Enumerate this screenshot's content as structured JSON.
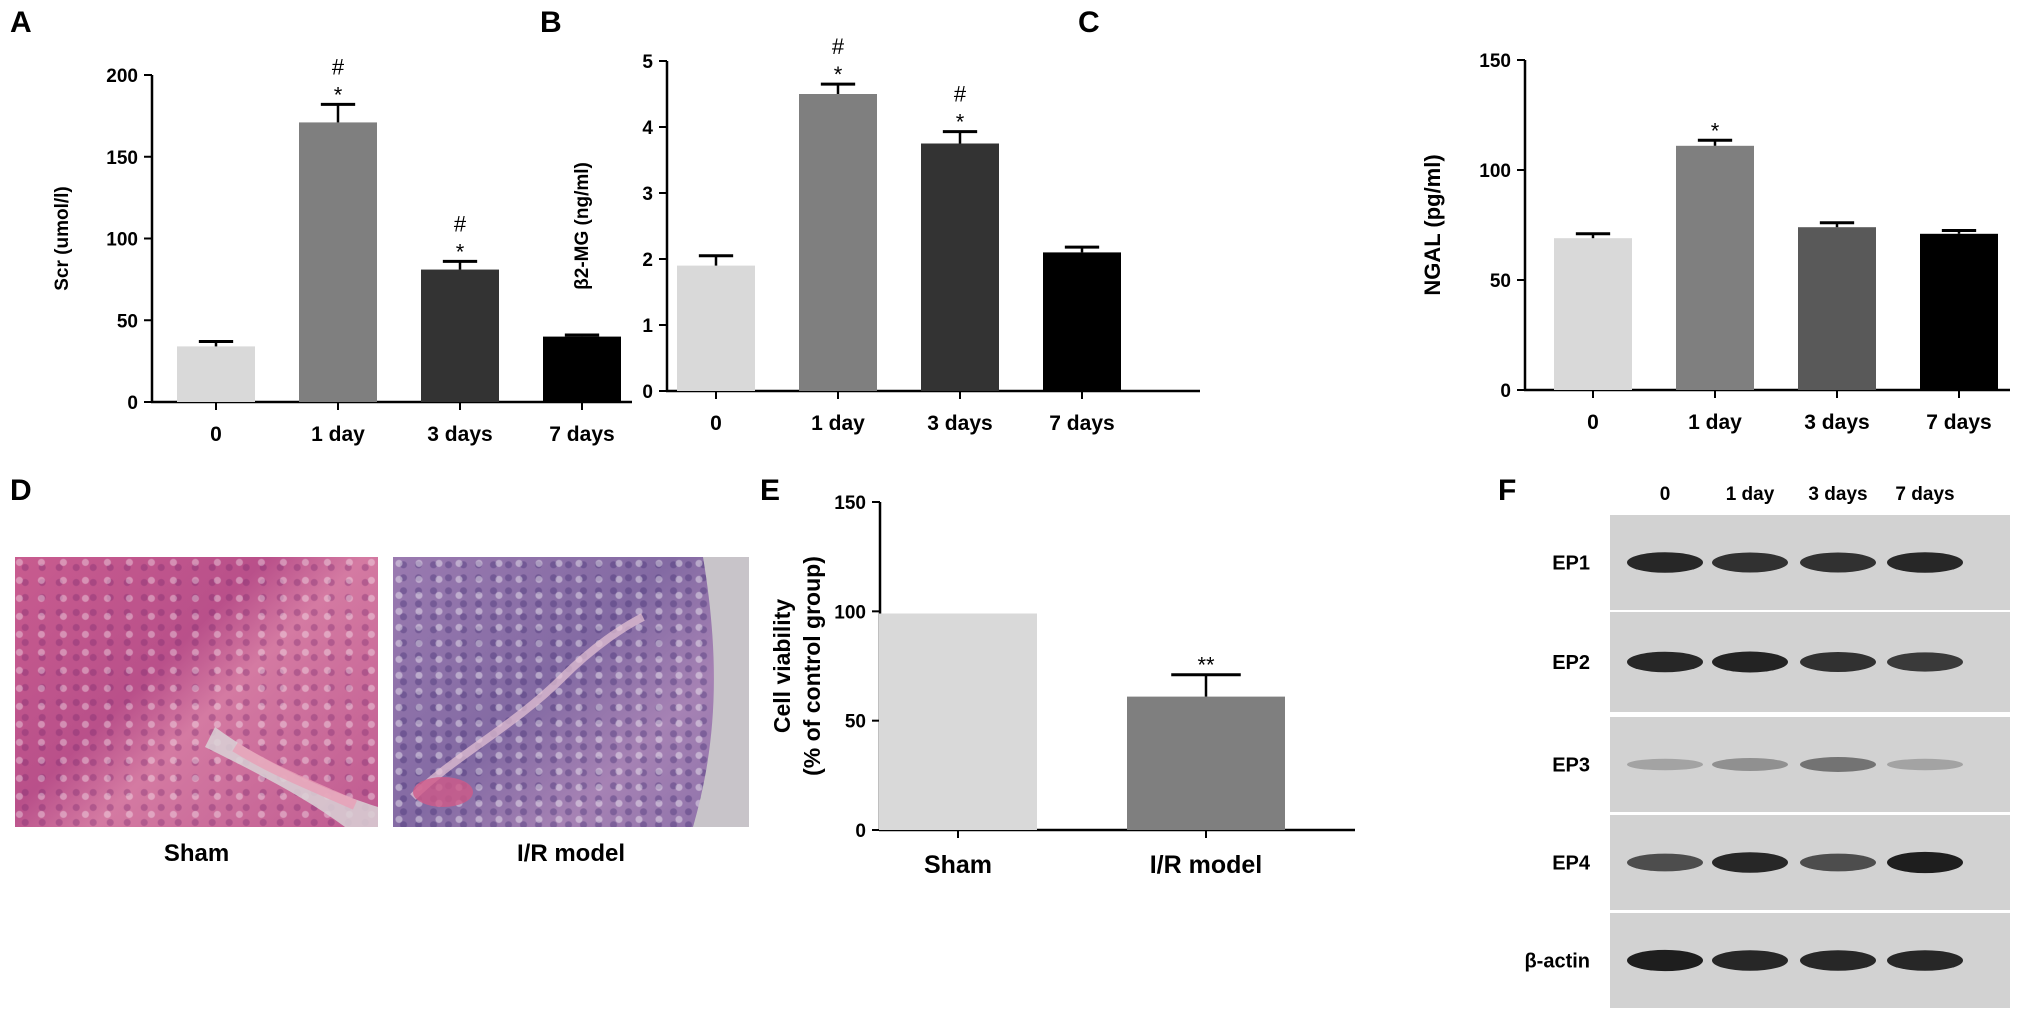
{
  "panel_letters": {
    "a": "A",
    "b": "B",
    "c": "C",
    "d": "D",
    "e": "E",
    "f": "F"
  },
  "chart_data": [
    {
      "id": "A",
      "type": "bar",
      "categories": [
        "0",
        "1 day",
        "3 days",
        "7 days"
      ],
      "values": [
        34,
        171,
        81,
        40
      ],
      "errors": [
        3,
        11,
        5,
        1
      ],
      "colors": [
        "#d9d9d9",
        "#7f7f7f",
        "#333333",
        "#000000"
      ],
      "annotations": [
        [],
        [
          "#",
          "*"
        ],
        [
          "#",
          "*"
        ],
        []
      ],
      "ylabel": "Scr (umol/l)",
      "ylim": [
        0,
        200
      ],
      "yticks": [
        0,
        50,
        100,
        150,
        200
      ]
    },
    {
      "id": "B",
      "type": "bar",
      "categories": [
        "0",
        "1 day",
        "3 days",
        "7 days"
      ],
      "values": [
        1.9,
        4.5,
        3.75,
        2.1
      ],
      "errors": [
        0.15,
        0.15,
        0.18,
        0.08
      ],
      "colors": [
        "#d9d9d9",
        "#7f7f7f",
        "#333333",
        "#000000"
      ],
      "annotations": [
        [],
        [
          "#",
          "*"
        ],
        [
          "#",
          "*"
        ],
        []
      ],
      "ylabel": "β2-MG (ng/ml)",
      "ylim": [
        0,
        5
      ],
      "yticks": [
        0,
        1,
        2,
        3,
        4,
        5
      ]
    },
    {
      "id": "C",
      "type": "bar",
      "categories": [
        "0",
        "1 day",
        "3 days",
        "7 days"
      ],
      "values": [
        69,
        111,
        74,
        71
      ],
      "errors": [
        2,
        2.5,
        2,
        1.5
      ],
      "colors": [
        "#d9d9d9",
        "#7f7f7f",
        "#595959",
        "#000000"
      ],
      "annotations": [
        [],
        [
          "*"
        ],
        [],
        []
      ],
      "ylabel": "NGAL (pg/ml)",
      "ylim": [
        0,
        150
      ],
      "yticks": [
        0,
        50,
        100,
        150
      ]
    },
    {
      "id": "E",
      "type": "bar",
      "categories": [
        "Sham",
        "I/R model"
      ],
      "values": [
        99,
        61
      ],
      "errors": [
        0,
        10
      ],
      "colors": [
        "#d9d9d9",
        "#7f7f7f"
      ],
      "annotations": [
        [],
        [
          "**"
        ]
      ],
      "ylabel": "Cell viability",
      "ylabel2": "(% of control group)",
      "ylim": [
        0,
        150
      ],
      "yticks": [
        0,
        50,
        100,
        150
      ]
    }
  ],
  "histology": {
    "captions": [
      "Sham",
      "I/R model"
    ],
    "colors": {
      "sham": "#c45a8e",
      "ir": "#8d6fa6",
      "lumen": "#d9d2d6"
    }
  },
  "western_blot": {
    "lanes": [
      "0",
      "1 day",
      "3 days",
      "7 days"
    ],
    "rows": [
      {
        "label": "EP1",
        "intensity": [
          0.9,
          0.85,
          0.85,
          0.9
        ]
      },
      {
        "label": "EP2",
        "intensity": [
          0.9,
          0.92,
          0.85,
          0.8
        ]
      },
      {
        "label": "EP3",
        "intensity": [
          0.25,
          0.35,
          0.5,
          0.25
        ]
      },
      {
        "label": "EP4",
        "intensity": [
          0.7,
          0.9,
          0.7,
          0.95
        ]
      },
      {
        "label": "β-actin",
        "intensity": [
          0.95,
          0.9,
          0.9,
          0.9
        ]
      }
    ]
  }
}
